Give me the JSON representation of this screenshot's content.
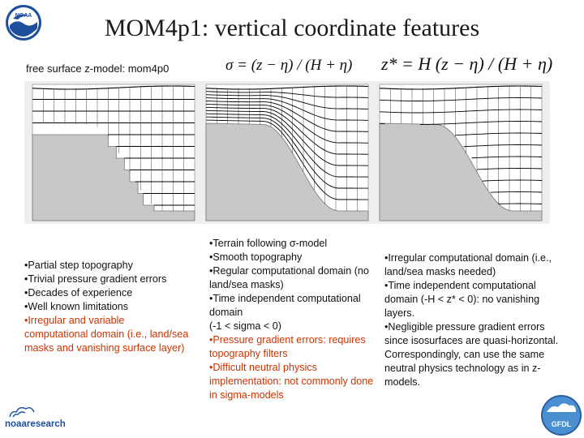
{
  "title": "MOM4p1: vertical coordinate features",
  "subtitle": "free surface z-model: mom4p0",
  "equations": {
    "sigma": "σ = (z − η) / (H + η)",
    "zstar": "z* = H (z − η) / (H + η)"
  },
  "logos": {
    "noaa": "NOAA",
    "noaa_research": "noaaresearch",
    "gfdl": "GFDL"
  },
  "columns": [
    {
      "items": [
        {
          "text": "•Partial step topography",
          "hl": false
        },
        {
          "text": "•Trivial pressure gradient errors",
          "hl": false
        },
        {
          "text": "•Decades of experience",
          "hl": false
        },
        {
          "text": "•Well known limitations",
          "hl": false
        },
        {
          "text": "•Irregular and variable computational domain (i.e., land/sea masks and vanishing surface layer)",
          "hl": true
        }
      ]
    },
    {
      "items": [
        {
          "text": "•Terrain following σ-model",
          "hl": false
        },
        {
          "text": "•Smooth topography",
          "hl": false
        },
        {
          "text": "•Regular computational domain (no land/sea masks)",
          "hl": false
        },
        {
          "text": "•Time independent computational domain",
          "hl": false
        },
        {
          "text": " (-1 < sigma < 0)",
          "hl": false
        },
        {
          "text": "•Pressure gradient errors: requires topography filters",
          "hl": true
        },
        {
          "text": "•Difficult neutral physics implementation: not commonly done in sigma-models",
          "hl": true
        }
      ]
    },
    {
      "items": [
        {
          "text": "•Irregular computational domain (i.e., land/sea masks needed)",
          "hl": false
        },
        {
          "text": "•Time independent computational domain (-H < z* < 0): no vanishing layers.",
          "hl": false
        },
        {
          "text": "•Negligible pressure gradient errors since isosurfaces are quasi-horizontal.  Correspondingly, can use the same neutral physics technology as in z-models.",
          "hl": false
        }
      ]
    }
  ],
  "colors": {
    "terrain": "#c8c8c8",
    "panel_bg": "#eeeeee",
    "line": "#000000",
    "highlight": "#cc3300",
    "noaa_blue": "#1c4f9c"
  }
}
